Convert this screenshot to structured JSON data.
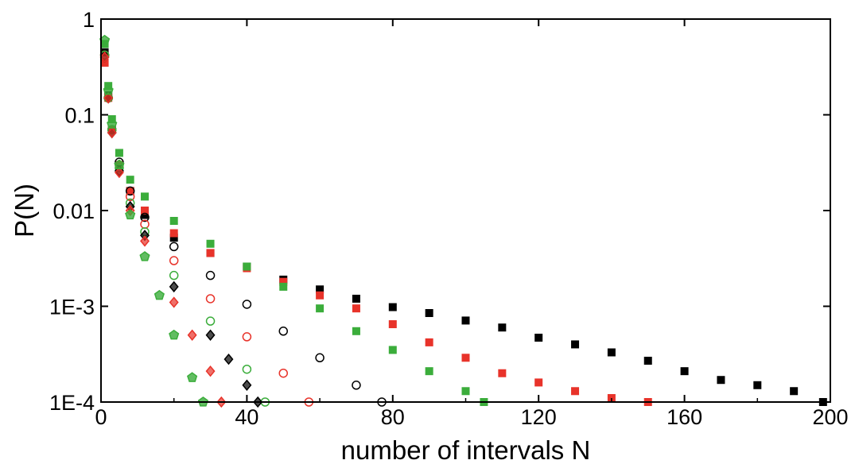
{
  "chart_data": {
    "type": "scatter",
    "title": "",
    "xlabel": "number of intervals N",
    "ylabel": "P(N)",
    "xlim": [
      0,
      200
    ],
    "ylim": [
      0.0001,
      1
    ],
    "yscale": "log",
    "grid": false,
    "legend": "none",
    "xticks": [
      {
        "value": 0,
        "label": "0"
      },
      {
        "value": 40,
        "label": "40"
      },
      {
        "value": 80,
        "label": "80"
      },
      {
        "value": 120,
        "label": "120"
      },
      {
        "value": 160,
        "label": "160"
      },
      {
        "value": 200,
        "label": "200"
      }
    ],
    "yticks": [
      {
        "value": 1,
        "label": "1"
      },
      {
        "value": 0.1,
        "label": "0.1"
      },
      {
        "value": 0.01,
        "label": "0.01"
      },
      {
        "value": 0.001,
        "label": "1E-3"
      },
      {
        "value": 0.0001,
        "label": "1E-4"
      }
    ],
    "series": [
      {
        "marker": "square",
        "color": "#000000",
        "filled": true,
        "x": [
          1,
          2,
          3,
          5,
          8,
          12,
          20,
          30,
          40,
          50,
          60,
          70,
          80,
          90,
          100,
          110,
          120,
          130,
          140,
          150,
          160,
          170,
          180,
          190,
          198
        ],
        "y": [
          0.45,
          0.16,
          0.07,
          0.03,
          0.016,
          0.009,
          0.0052,
          0.0036,
          0.0026,
          0.0019,
          0.0015,
          0.0012,
          0.00098,
          0.00085,
          0.00071,
          0.0006,
          0.00047,
          0.0004,
          0.00033,
          0.00027,
          0.00021,
          0.00017,
          0.00015,
          0.00013,
          0.0001
        ]
      },
      {
        "marker": "square",
        "color": "#e8332a",
        "filled": true,
        "x": [
          1,
          2,
          3,
          5,
          8,
          12,
          20,
          30,
          40,
          50,
          60,
          70,
          80,
          90,
          100,
          110,
          120,
          130,
          140,
          150
        ],
        "y": [
          0.35,
          0.15,
          0.07,
          0.03,
          0.016,
          0.01,
          0.0058,
          0.0036,
          0.0025,
          0.0018,
          0.0013,
          0.00095,
          0.00065,
          0.00042,
          0.00029,
          0.0002,
          0.00016,
          0.00013,
          0.00011,
          0.0001
        ]
      },
      {
        "marker": "square",
        "color": "#3bad3b",
        "filled": true,
        "x": [
          1,
          2,
          3,
          5,
          8,
          12,
          20,
          30,
          40,
          50,
          60,
          70,
          80,
          90,
          100,
          105
        ],
        "y": [
          0.55,
          0.2,
          0.09,
          0.04,
          0.021,
          0.014,
          0.0078,
          0.0045,
          0.0026,
          0.0016,
          0.00095,
          0.00055,
          0.00035,
          0.00021,
          0.00013,
          0.0001
        ]
      },
      {
        "marker": "circle",
        "color": "#000000",
        "filled": false,
        "x": [
          1,
          2,
          3,
          5,
          8,
          12,
          20,
          30,
          40,
          50,
          60,
          70,
          77
        ],
        "y": [
          0.42,
          0.15,
          0.07,
          0.032,
          0.016,
          0.0085,
          0.0042,
          0.0021,
          0.00105,
          0.00055,
          0.00029,
          0.00015,
          0.0001
        ]
      },
      {
        "marker": "circle",
        "color": "#e8332a",
        "filled": false,
        "x": [
          1,
          2,
          3,
          5,
          8,
          12,
          20,
          30,
          40,
          50,
          57
        ],
        "y": [
          0.42,
          0.15,
          0.07,
          0.03,
          0.014,
          0.0072,
          0.003,
          0.0012,
          0.00048,
          0.0002,
          0.0001
        ]
      },
      {
        "marker": "circle",
        "color": "#3bad3b",
        "filled": false,
        "x": [
          1,
          2,
          3,
          5,
          8,
          12,
          20,
          30,
          40,
          45
        ],
        "y": [
          0.42,
          0.15,
          0.07,
          0.028,
          0.012,
          0.006,
          0.0021,
          0.0007,
          0.00022,
          0.0001
        ]
      },
      {
        "marker": "diamond",
        "color": "#000000",
        "filled": "half",
        "x": [
          1,
          2,
          3,
          5,
          8,
          12,
          20,
          30,
          35,
          40,
          43
        ],
        "y": [
          0.4,
          0.15,
          0.065,
          0.026,
          0.011,
          0.0055,
          0.0016,
          0.0005,
          0.00028,
          0.00015,
          0.0001
        ]
      },
      {
        "marker": "diamond",
        "color": "#e8332a",
        "filled": "half",
        "x": [
          1,
          2,
          3,
          5,
          8,
          12,
          20,
          25,
          30,
          33
        ],
        "y": [
          0.4,
          0.15,
          0.065,
          0.025,
          0.01,
          0.0048,
          0.0011,
          0.0005,
          0.00021,
          0.0001
        ]
      },
      {
        "marker": "pentagon",
        "color": "#3bad3b",
        "filled": "half",
        "x": [
          1,
          2,
          3,
          5,
          8,
          12,
          16,
          20,
          25,
          28
        ],
        "y": [
          0.6,
          0.18,
          0.08,
          0.03,
          0.009,
          0.0033,
          0.0013,
          0.0005,
          0.00018,
          0.0001
        ]
      }
    ]
  }
}
